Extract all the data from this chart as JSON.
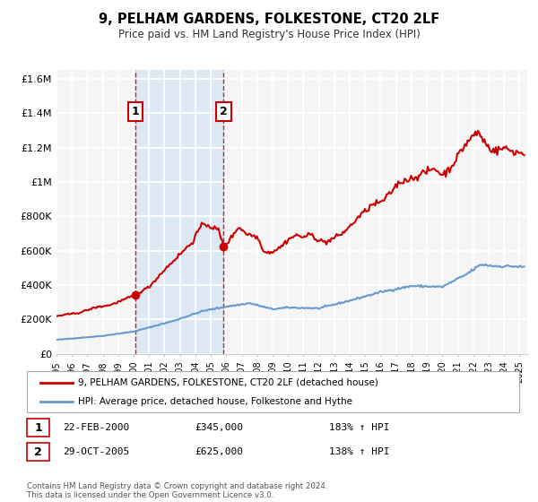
{
  "title": "9, PELHAM GARDENS, FOLKESTONE, CT20 2LF",
  "subtitle": "Price paid vs. HM Land Registry's House Price Index (HPI)",
  "hpi_color": "#6699cc",
  "price_color": "#cc0000",
  "sale1_date": 2000.13,
  "sale1_price": 345000,
  "sale1_label": "1",
  "sale1_hpi_pct": "183%",
  "sale1_date_str": "22-FEB-2000",
  "sale2_date": 2005.83,
  "sale2_price": 625000,
  "sale2_label": "2",
  "sale2_hpi_pct": "138%",
  "sale2_date_str": "29-OCT-2005",
  "ylim": [
    0,
    1650000
  ],
  "xlim_start": 1995.0,
  "xlim_end": 2025.5,
  "yticks": [
    0,
    200000,
    400000,
    600000,
    800000,
    1000000,
    1200000,
    1400000,
    1600000
  ],
  "ytick_labels": [
    "£0",
    "£200K",
    "£400K",
    "£600K",
    "£800K",
    "£1M",
    "£1.2M",
    "£1.4M",
    "£1.6M"
  ],
  "xticks": [
    1995,
    1996,
    1997,
    1998,
    1999,
    2000,
    2001,
    2002,
    2003,
    2004,
    2005,
    2006,
    2007,
    2008,
    2009,
    2010,
    2011,
    2012,
    2013,
    2014,
    2015,
    2016,
    2017,
    2018,
    2019,
    2020,
    2021,
    2022,
    2023,
    2024,
    2025
  ],
  "legend_label1": "9, PELHAM GARDENS, FOLKESTONE, CT20 2LF (detached house)",
  "legend_label2": "HPI: Average price, detached house, Folkestone and Hythe",
  "footer": "Contains HM Land Registry data © Crown copyright and database right 2024.\nThis data is licensed under the Open Government Licence v3.0.",
  "background_color": "#ffffff",
  "plot_bg_color": "#f5f5f5",
  "shade_color": "#dce9f5",
  "grid_color": "#ffffff",
  "hpi_waypoints_x": [
    1995.0,
    1998.0,
    2000.0,
    2002.5,
    2004.5,
    2006.0,
    2007.5,
    2009.0,
    2010.0,
    2012.0,
    2014.0,
    2016.0,
    2018.0,
    2020.0,
    2021.5,
    2022.5,
    2023.5,
    2024.5,
    2025.3
  ],
  "hpi_waypoints_y": [
    82000,
    105000,
    130000,
    190000,
    250000,
    275000,
    295000,
    260000,
    270000,
    265000,
    310000,
    360000,
    395000,
    390000,
    460000,
    520000,
    510000,
    510000,
    505000
  ],
  "price_waypoints_x": [
    1995.0,
    1996.5,
    1997.5,
    1998.5,
    1999.5,
    2000.13,
    2001.0,
    2002.0,
    2003.0,
    2003.8,
    2004.2,
    2004.6,
    2005.0,
    2005.5,
    2005.83,
    2006.2,
    2006.8,
    2007.3,
    2008.0,
    2008.5,
    2009.0,
    2009.5,
    2010.0,
    2010.5,
    2011.0,
    2011.5,
    2012.0,
    2012.5,
    2013.0,
    2013.5,
    2014.0,
    2014.5,
    2015.0,
    2015.5,
    2016.0,
    2016.5,
    2017.0,
    2017.5,
    2018.0,
    2018.5,
    2019.0,
    2019.5,
    2020.0,
    2020.5,
    2021.0,
    2021.5,
    2022.0,
    2022.3,
    2022.7,
    2023.0,
    2023.5,
    2024.0,
    2024.5,
    2025.0,
    2025.3
  ],
  "price_waypoints_y": [
    220000,
    240000,
    270000,
    285000,
    320000,
    345000,
    390000,
    490000,
    580000,
    650000,
    720000,
    760000,
    740000,
    720000,
    625000,
    660000,
    740000,
    700000,
    680000,
    590000,
    595000,
    620000,
    665000,
    690000,
    680000,
    695000,
    660000,
    650000,
    675000,
    700000,
    740000,
    790000,
    830000,
    870000,
    880000,
    920000,
    980000,
    1010000,
    1020000,
    1040000,
    1060000,
    1080000,
    1040000,
    1080000,
    1150000,
    1220000,
    1270000,
    1290000,
    1240000,
    1200000,
    1180000,
    1200000,
    1180000,
    1170000,
    1165000
  ]
}
